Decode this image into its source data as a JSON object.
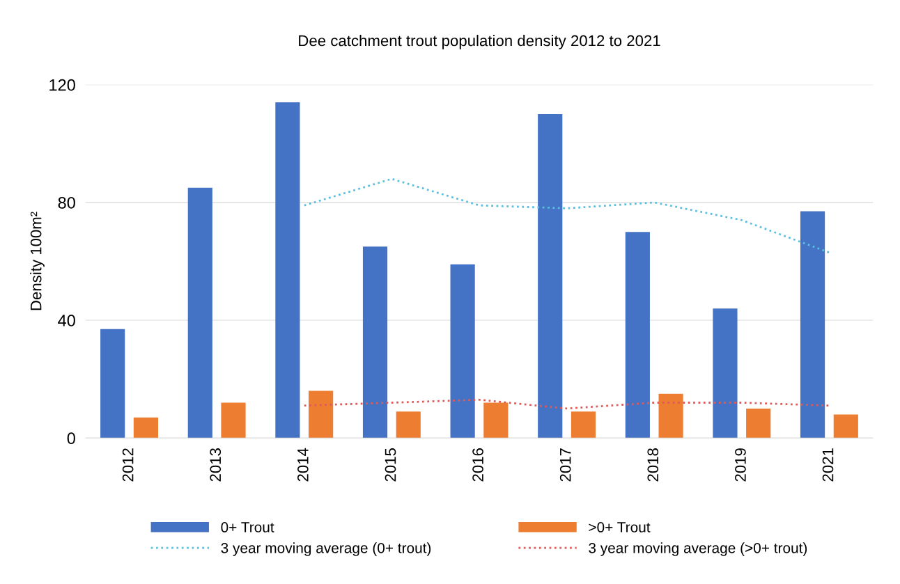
{
  "chart_data": {
    "type": "bar",
    "title": "Dee catchment trout population density 2012 to 2021",
    "ylabel": "Density 100m²",
    "categories": [
      "2012",
      "2013",
      "2014",
      "2015",
      "2016",
      "2017",
      "2018",
      "2019",
      "2021"
    ],
    "series": [
      {
        "name": "0+ Trout",
        "color": "#4472c4",
        "values": [
          37,
          85,
          114,
          65,
          59,
          110,
          70,
          44,
          77
        ]
      },
      {
        "name": ">0+ Trout",
        "color": "#ed7d31",
        "values": [
          7,
          12,
          16,
          9,
          12,
          9,
          15,
          10,
          8
        ]
      },
      {
        "name": "3 year moving average (0+ trout)",
        "type": "line",
        "line_style": "dotted",
        "color": "#5bc0de",
        "values": [
          null,
          null,
          79,
          88,
          79,
          78,
          80,
          74,
          63
        ]
      },
      {
        "name": "3 year moving average (>0+ trout)",
        "type": "line",
        "line_style": "dotted",
        "color": "#e05a5a",
        "values": [
          null,
          null,
          11,
          12,
          13,
          10,
          12,
          12,
          11
        ]
      }
    ],
    "ylim": [
      0,
      120
    ],
    "yticks": [
      0,
      40,
      80,
      120
    ],
    "grid": "y",
    "legend": "bottom"
  }
}
